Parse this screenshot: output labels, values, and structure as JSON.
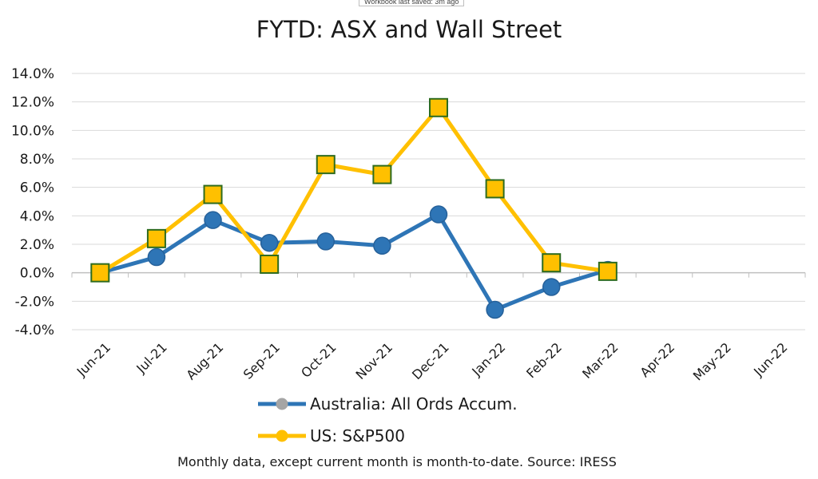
{
  "tooltip": "Workbook last saved: 3m ago",
  "footnote": "Monthly data, except current month is month-to-date.  Source: IRESS",
  "colors": {
    "australia_line": "#2e75b6",
    "australia_legend_marker": "#a5a5a5",
    "us_line": "#ffc000",
    "us_marker_border": "#2e6b1e",
    "gridline": "#d9d9d9",
    "axis": "#bfbfbf"
  },
  "chart_data": {
    "type": "line",
    "title": "FYTD: ASX and Wall Street",
    "categories": [
      "Jun-21",
      "Jul-21",
      "Aug-21",
      "Sep-21",
      "Oct-21",
      "Nov-21",
      "Dec-21",
      "Jan-22",
      "Feb-22",
      "Mar-22",
      "Apr-22",
      "May-22",
      "Jun-22"
    ],
    "series": [
      {
        "name": "Australia: All Ords Accum.",
        "marker": "circle",
        "values": [
          0.0,
          1.1,
          3.7,
          2.1,
          2.2,
          1.9,
          4.1,
          -2.6,
          -1.0,
          0.2,
          null,
          null,
          null
        ]
      },
      {
        "name": "US: S&P500",
        "marker": "square",
        "values": [
          0.0,
          2.4,
          5.5,
          0.6,
          7.6,
          6.9,
          11.6,
          5.9,
          0.7,
          0.1,
          null,
          null,
          null
        ]
      }
    ],
    "yticks": [
      "14.0%",
      "12.0%",
      "10.0%",
      "8.0%",
      "6.0%",
      "4.0%",
      "2.0%",
      "0.0%",
      "-2.0%",
      "-4.0%"
    ],
    "ylim": [
      -4,
      14
    ],
    "ystep": 2,
    "xlabel": "",
    "ylabel": "",
    "grid": true,
    "legend": "bottom"
  }
}
